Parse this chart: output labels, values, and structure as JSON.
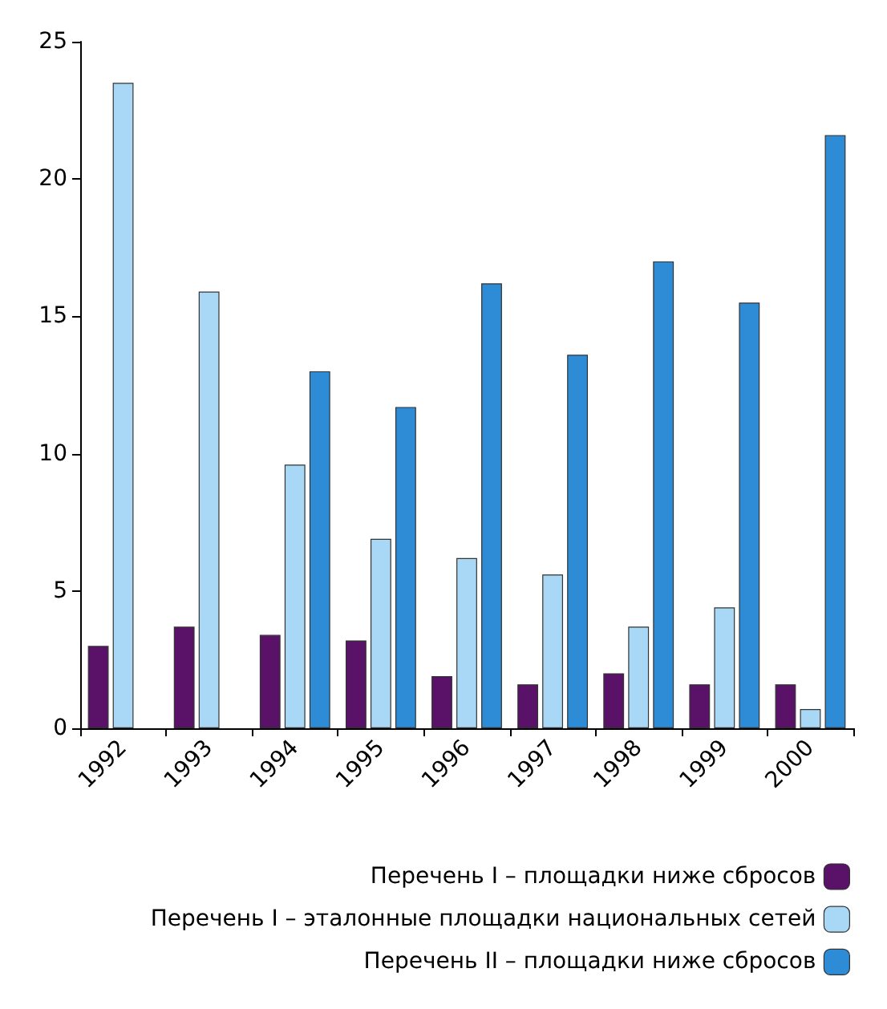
{
  "chart_data": {
    "type": "bar",
    "categories": [
      "1992",
      "1993",
      "1994",
      "1995",
      "1996",
      "1997",
      "1998",
      "1999",
      "2000"
    ],
    "series": [
      {
        "name": "Перечень I – площадки ниже сбросов",
        "color": "#5a1168",
        "values": [
          3.0,
          3.7,
          3.4,
          3.2,
          1.9,
          1.6,
          2.0,
          1.6,
          1.6
        ]
      },
      {
        "name": "Перечень I – эталонные площадки национальных сетей",
        "color": "#a8d8f5",
        "values": [
          23.5,
          15.9,
          9.6,
          6.9,
          6.2,
          5.6,
          3.7,
          4.4,
          0.7
        ]
      },
      {
        "name": "Перечень II – площадки ниже сбросов",
        "color": "#2e8bd6",
        "values": [
          null,
          null,
          13.0,
          11.7,
          16.2,
          13.6,
          17.0,
          15.5,
          21.6
        ]
      }
    ],
    "ylim": [
      0,
      25
    ],
    "yticks": [
      0,
      5,
      10,
      15,
      20,
      25
    ],
    "grid": false,
    "legend": "bottom right"
  }
}
